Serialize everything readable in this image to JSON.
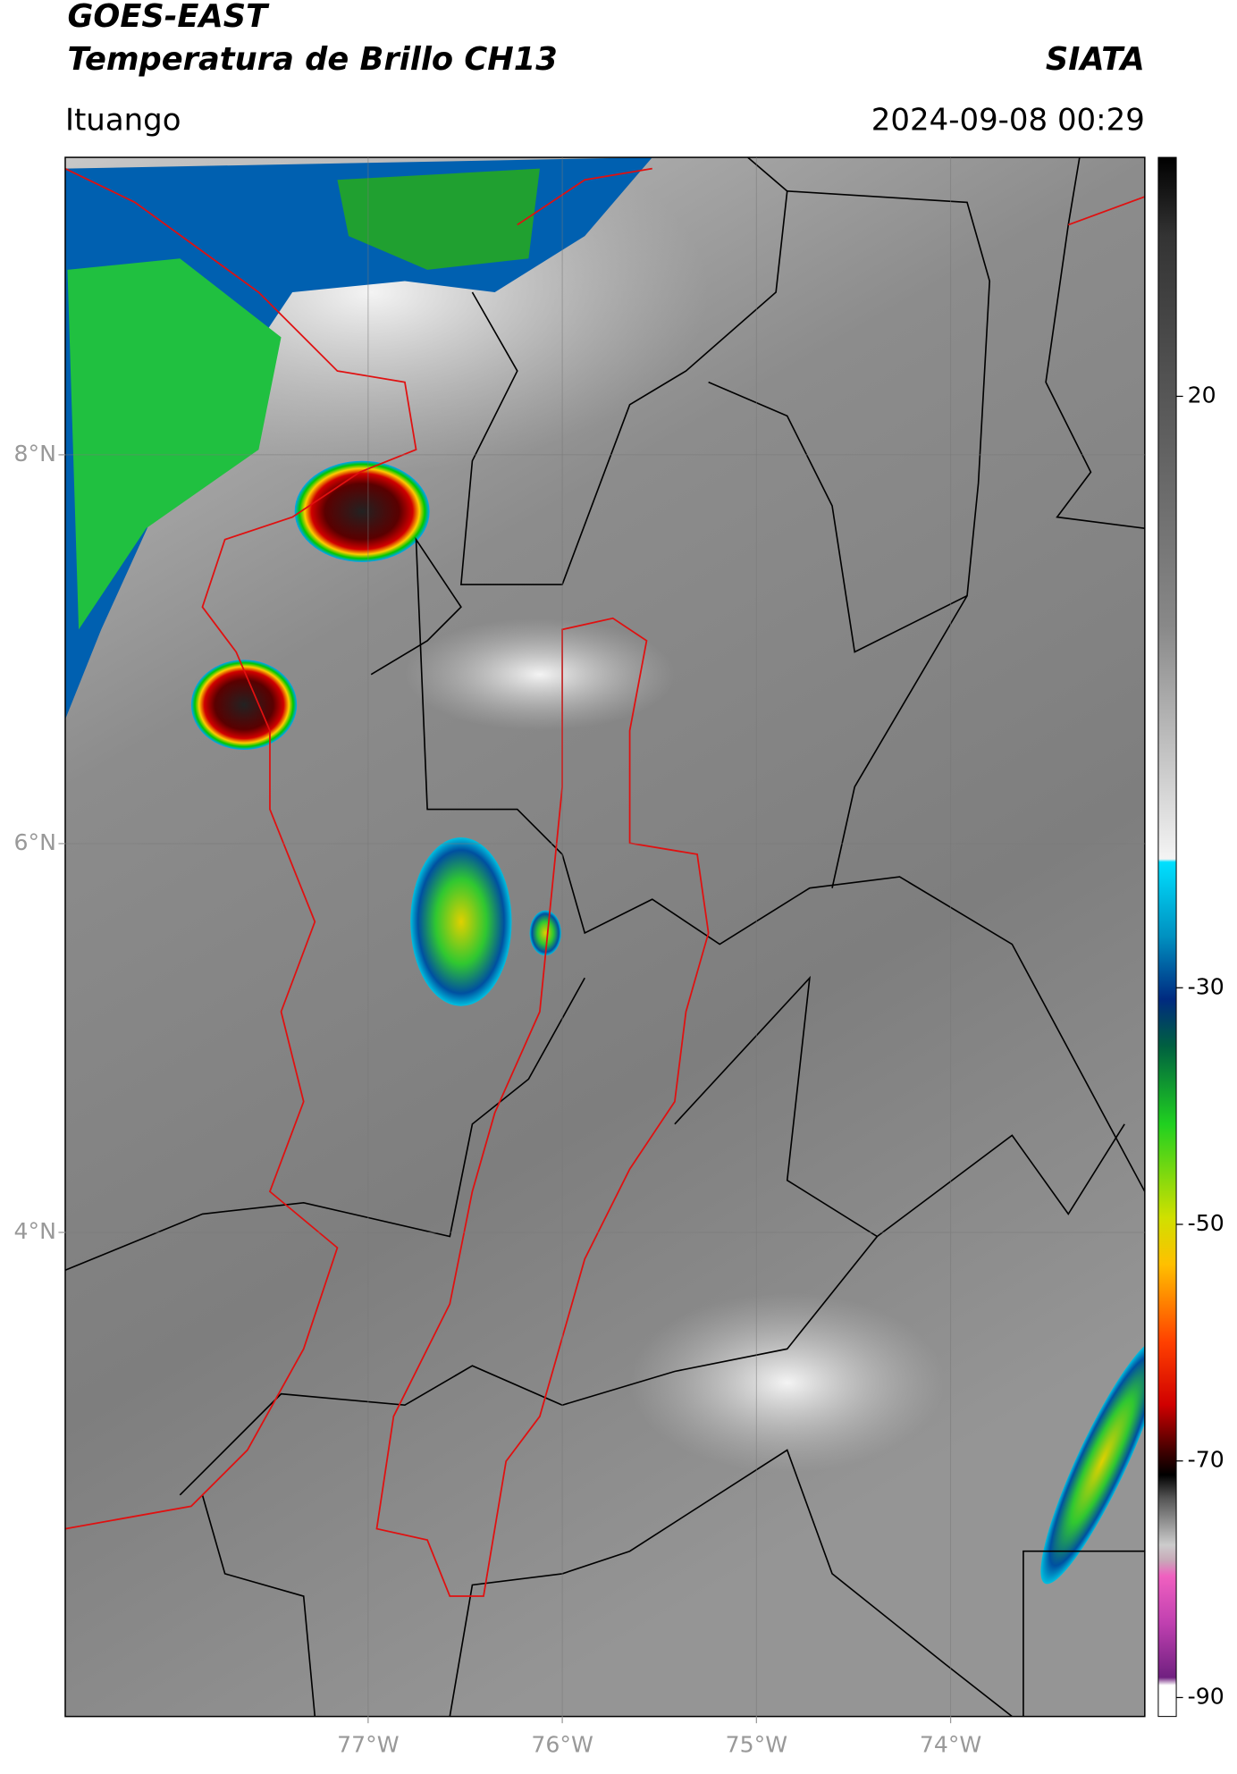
{
  "header": {
    "title": "GOES-EAST",
    "subtitle": "Temperatura de Brillo CH13",
    "source": "SIATA",
    "region": "Ituango",
    "datetime": "2024-09-08 00:29"
  },
  "map": {
    "xlim": [
      -78.56,
      -73.0
    ],
    "ylim": [
      1.51,
      9.53
    ],
    "xticks": [
      {
        "value": -77,
        "label": "77°W"
      },
      {
        "value": -76,
        "label": "76°W"
      },
      {
        "value": -75,
        "label": "75°W"
      },
      {
        "value": -74,
        "label": "74°W"
      }
    ],
    "yticks": [
      {
        "value": 8,
        "label": "8°N"
      },
      {
        "value": 6,
        "label": "6°N"
      },
      {
        "value": 4,
        "label": "4°N"
      }
    ],
    "grid": true
  },
  "colorbar": {
    "lim": [
      -91.6,
      40.2
    ],
    "ticks": [
      20,
      -30,
      -50,
      -70,
      -90
    ]
  }
}
